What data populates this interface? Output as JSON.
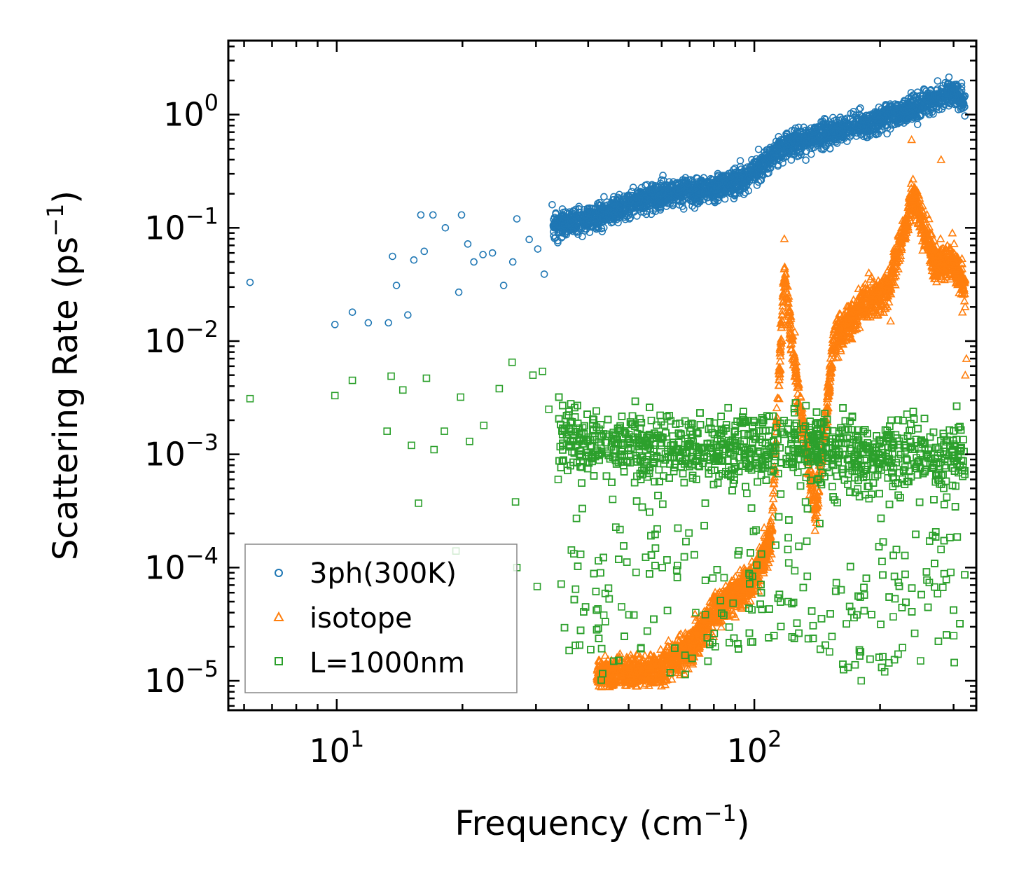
{
  "chart_data": {
    "type": "scatter",
    "xscale": "log",
    "yscale": "log",
    "xlim": [
      5.5,
      340
    ],
    "ylim": [
      5.5e-06,
      4.5
    ],
    "xlabel": "Frequency (cm",
    "xlabel_sup": "−1",
    "xlabel_end": ")",
    "ylabel": "Scattering Rate (ps",
    "ylabel_sup": "−1",
    "ylabel_end": ")",
    "x_ticks": [
      {
        "value": 10,
        "base": "10",
        "exp": "1"
      },
      {
        "value": 100,
        "base": "10",
        "exp": "2"
      }
    ],
    "y_ticks": [
      {
        "value": 1,
        "base": "10",
        "exp": "0"
      },
      {
        "value": 0.1,
        "base": "10",
        "exp": "−1"
      },
      {
        "value": 0.01,
        "base": "10",
        "exp": "−2"
      },
      {
        "value": 0.001,
        "base": "10",
        "exp": "−3"
      },
      {
        "value": 0.0001,
        "base": "10",
        "exp": "−4"
      },
      {
        "value": 1e-05,
        "base": "10",
        "exp": "−5"
      }
    ],
    "legend_position": "lower-left",
    "series": [
      {
        "name": "3ph(300K)",
        "marker": "circle",
        "color": "#1f77b4",
        "trend": [
          [
            6.2,
            0.033
          ],
          [
            10,
            0.014
          ],
          [
            15,
            0.09
          ],
          [
            20,
            0.12
          ],
          [
            30,
            0.1
          ],
          [
            40,
            0.12
          ],
          [
            60,
            0.2
          ],
          [
            80,
            0.22
          ],
          [
            100,
            0.3
          ],
          [
            115,
            0.5
          ],
          [
            150,
            0.7
          ],
          [
            200,
            0.9
          ],
          [
            260,
            1.3
          ],
          [
            300,
            1.6
          ],
          [
            320,
            1.3
          ]
        ],
        "points": [
          [
            6.2,
            0.033
          ],
          [
            9.9,
            0.014
          ],
          [
            10.9,
            0.018
          ],
          [
            11.9,
            0.0145
          ],
          [
            13.3,
            0.0145
          ],
          [
            13.6,
            0.056
          ],
          [
            13.9,
            0.031
          ],
          [
            14.8,
            0.017
          ],
          [
            15.3,
            0.052
          ],
          [
            15.9,
            0.13
          ],
          [
            16.2,
            0.062
          ],
          [
            17.0,
            0.13
          ],
          [
            18.2,
            0.1
          ],
          [
            19.6,
            0.027
          ],
          [
            19.9,
            0.13
          ],
          [
            20.6,
            0.072
          ],
          [
            21.3,
            0.05
          ],
          [
            22.4,
            0.058
          ],
          [
            23.6,
            0.06
          ],
          [
            25.1,
            0.031
          ],
          [
            26.4,
            0.05
          ],
          [
            27.0,
            0.12
          ],
          [
            28.9,
            0.079
          ],
          [
            30.3,
            0.065
          ],
          [
            31.4,
            0.039
          ],
          [
            32.8,
            0.16
          ]
        ]
      },
      {
        "name": "isotope",
        "marker": "triangle",
        "color": "#ff7f0e",
        "trend": [
          [
            42,
            1.1e-05
          ],
          [
            50,
            1.2e-05
          ],
          [
            60,
            1.3e-05
          ],
          [
            70,
            2e-05
          ],
          [
            80,
            4e-05
          ],
          [
            100,
            8e-05
          ],
          [
            110,
            0.0002
          ],
          [
            118,
            0.04
          ],
          [
            125,
            0.006
          ],
          [
            140,
            0.0003
          ],
          [
            155,
            0.01
          ],
          [
            180,
            0.02
          ],
          [
            210,
            0.03
          ],
          [
            240,
            0.2
          ],
          [
            270,
            0.05
          ],
          [
            300,
            0.05
          ],
          [
            320,
            0.03
          ]
        ],
        "points": [
          [
            118,
            0.08
          ],
          [
            118,
            0.03
          ],
          [
            125,
            0.012
          ],
          [
            155,
            0.012
          ],
          [
            188,
            0.04
          ],
          [
            200,
            0.03
          ],
          [
            212,
            0.015
          ],
          [
            238,
            0.6
          ],
          [
            262,
            0.12
          ],
          [
            280,
            0.4
          ],
          [
            298,
            0.09
          ],
          [
            315,
            0.018
          ],
          [
            320,
            0.005
          ],
          [
            322,
            0.007
          ]
        ]
      },
      {
        "name": "L=1000nm",
        "marker": "square",
        "color": "#2ca02c",
        "trend": [
          [
            6.2,
            0.0031
          ],
          [
            10,
            0.0034
          ],
          [
            16,
            0.003
          ],
          [
            22,
            0.0025
          ],
          [
            30,
            0.002
          ],
          [
            40,
            0.0013
          ],
          [
            50,
            0.0012
          ],
          [
            70,
            0.0011
          ],
          [
            90,
            0.0012
          ],
          [
            110,
            0.0011
          ],
          [
            140,
            0.0012
          ],
          [
            180,
            0.0009
          ],
          [
            230,
            0.0011
          ],
          [
            280,
            0.0008
          ],
          [
            320,
            0.001
          ]
        ],
        "points": [
          [
            6.2,
            0.0031
          ],
          [
            9.9,
            0.0033
          ],
          [
            10.9,
            0.0045
          ],
          [
            13.2,
            0.0016
          ],
          [
            13.5,
            0.0049
          ],
          [
            14.4,
            0.0037
          ],
          [
            15.1,
            0.0012
          ],
          [
            15.7,
            0.00037
          ],
          [
            16.4,
            0.0047
          ],
          [
            17.1,
            0.0011
          ],
          [
            18.1,
            0.0016
          ],
          [
            19.3,
            0.00014
          ],
          [
            19.8,
            0.0032
          ],
          [
            20.8,
            0.0013
          ],
          [
            22.5,
            0.0018
          ],
          [
            24.5,
            0.0038
          ],
          [
            26.3,
            0.0065
          ],
          [
            26.8,
            0.00038
          ],
          [
            27.0,
            0.0001
          ],
          [
            29.5,
            0.005
          ],
          [
            30.2,
            6.8e-05
          ],
          [
            31.1,
            0.0054
          ],
          [
            32.2,
            0.0025
          ],
          [
            33.9,
            0.0006
          ],
          [
            34.8,
            0.0012
          ],
          [
            38.1,
            0.0017
          ],
          [
            43.6,
            3.8e-05
          ],
          [
            45.8,
            0.0004
          ],
          [
            48.1,
            4.5e-05
          ],
          [
            60.2,
            0.0001
          ],
          [
            72.4,
            4e-05
          ],
          [
            80.6,
            2e-05
          ],
          [
            98.1,
            2.2e-05
          ],
          [
            120.5,
            5e-05
          ],
          [
            151.4,
            1.8e-05
          ],
          [
            180.3,
            1e-05
          ],
          [
            205.2,
            1.2e-05
          ],
          [
            250.1,
            1.5e-05
          ],
          [
            300.3,
            2.5e-05
          ]
        ]
      }
    ]
  }
}
